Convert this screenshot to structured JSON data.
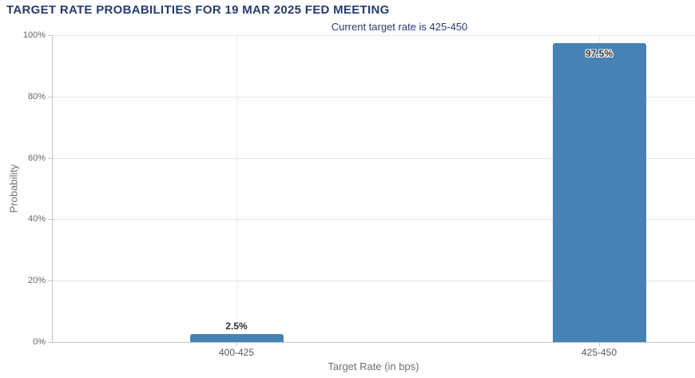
{
  "chart_data": {
    "type": "bar",
    "title": "TARGET RATE PROBABILITIES FOR 19 MAR 2025 FED MEETING",
    "subtitle": "Current target rate is 425-450",
    "categories": [
      "400-425",
      "425-450"
    ],
    "values": [
      2.5,
      97.5
    ],
    "data_labels": [
      "2.5%",
      "97.5%"
    ],
    "xlabel": "Target Rate (in bps)",
    "ylabel": "Probability",
    "ylim": [
      0,
      100
    ],
    "yticks": [
      {
        "value": 0,
        "label": "0%"
      },
      {
        "value": 20,
        "label": "20%"
      },
      {
        "value": 40,
        "label": "40%"
      },
      {
        "value": 60,
        "label": "60%"
      },
      {
        "value": 80,
        "label": "80%"
      },
      {
        "value": 100,
        "label": "100%"
      }
    ],
    "grid": true,
    "legend": "none",
    "colors": {
      "bar": "#4682b4",
      "title": "#263c6f",
      "subtitle": "#263c6f",
      "grid": "#e6e6e6",
      "axis_line": "#c6c6c6",
      "tick_text": "#666666",
      "axis_title_text": "#707070",
      "data_label_text": "#2e2e2e"
    }
  }
}
